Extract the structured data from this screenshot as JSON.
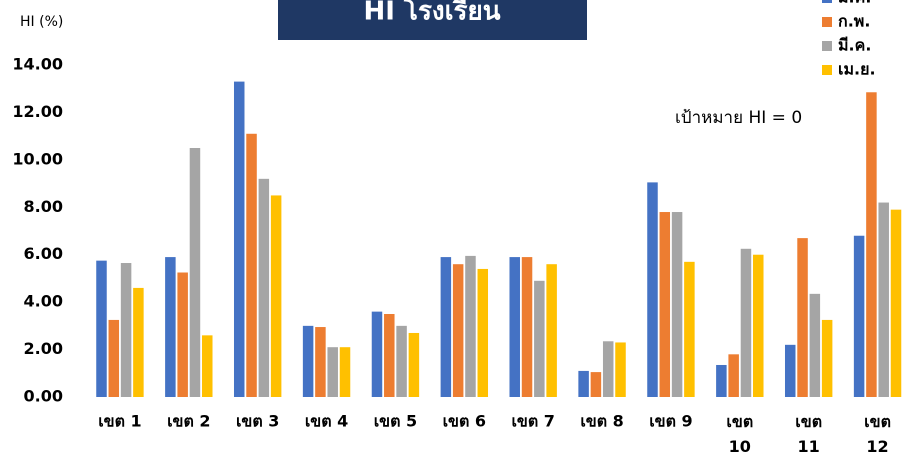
{
  "chart_data": {
    "type": "bar",
    "title": "HI โรงเรียน",
    "y_label": "HI (%)",
    "annotation": "เป้าหมาย HI = 0",
    "categories": [
      "เขต 1",
      "เขต 2",
      "เขต 3",
      "เขต 4",
      "เขต 5",
      "เขต 6",
      "เขต 7",
      "เขต 8",
      "เขต 9",
      "เขต 10",
      "เขต 11",
      "เขต 12"
    ],
    "series": [
      {
        "name": "ม.ค.",
        "color": "#4472c4",
        "values": [
          5.75,
          5.9,
          13.3,
          3.0,
          3.6,
          5.9,
          5.9,
          1.1,
          9.05,
          1.35,
          2.2,
          6.8
        ]
      },
      {
        "name": "ก.พ.",
        "color": "#ed7d31",
        "values": [
          3.25,
          5.25,
          11.1,
          2.95,
          3.5,
          5.6,
          5.9,
          1.05,
          7.8,
          1.8,
          6.7,
          12.85
        ]
      },
      {
        "name": "มี.ค.",
        "color": "#a5a5a5",
        "values": [
          5.65,
          10.5,
          9.2,
          2.1,
          3.0,
          5.95,
          4.9,
          2.35,
          7.8,
          6.25,
          4.35,
          8.2
        ]
      },
      {
        "name": "เม.ย.",
        "color": "#ffc000",
        "values": [
          4.6,
          2.6,
          8.5,
          2.1,
          2.7,
          5.4,
          5.6,
          2.3,
          5.7,
          6.0,
          3.25,
          7.9
        ]
      }
    ],
    "ylim": [
      0,
      14
    ],
    "yticks": [
      {
        "value": 0,
        "label": "0.00"
      },
      {
        "value": 2,
        "label": "2.00"
      },
      {
        "value": 4,
        "label": "4.00"
      },
      {
        "value": 6,
        "label": "6.00"
      },
      {
        "value": 8,
        "label": "8.00"
      },
      {
        "value": 10,
        "label": "10.00"
      },
      {
        "value": 12,
        "label": "12.00"
      },
      {
        "value": 14,
        "label": "14.00"
      }
    ],
    "legend": "top-right"
  }
}
